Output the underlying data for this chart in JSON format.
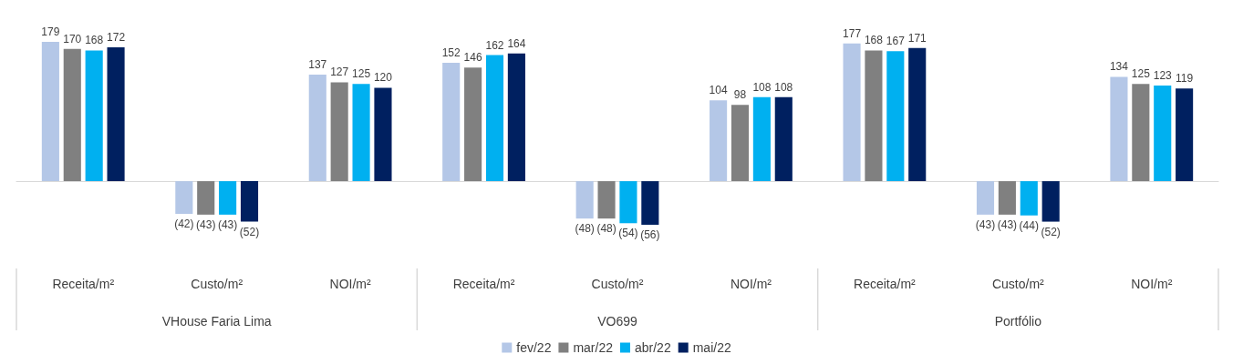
{
  "chart_data": {
    "type": "bar",
    "categories": [
      "Receita/m²",
      "Custo/m²",
      "NOI/m²",
      "Receita/m²",
      "Custo/m²",
      "NOI/m²",
      "Receita/m²",
      "Custo/m²",
      "NOI/m²"
    ],
    "annotations": [
      "VHouse Faria Lima",
      "VO699",
      "Portfólio"
    ],
    "series": [
      {
        "name": "fev/22",
        "color": "#b4c7e7",
        "values": [
          179,
          -42,
          137,
          152,
          -48,
          104,
          177,
          -43,
          134
        ],
        "value_labels": [
          "179",
          "(42)",
          "137",
          "152",
          "(48)",
          "104",
          "177",
          "(43)",
          "134"
        ]
      },
      {
        "name": "mar/22",
        "color": "#808080",
        "values": [
          170,
          -43,
          127,
          146,
          -48,
          98,
          168,
          -43,
          125
        ],
        "value_labels": [
          "170",
          "(43)",
          "127",
          "146",
          "(48)",
          "98",
          "168",
          "(43)",
          "125"
        ]
      },
      {
        "name": "abr/22",
        "color": "#00b0f0",
        "values": [
          168,
          -43,
          125,
          162,
          -54,
          108,
          167,
          -44,
          123
        ],
        "value_labels": [
          "168",
          "(43)",
          "125",
          "162",
          "(54)",
          "108",
          "167",
          "(44)",
          "123"
        ]
      },
      {
        "name": "mai/22",
        "color": "#002060",
        "values": [
          172,
          -52,
          120,
          164,
          -56,
          108,
          171,
          -52,
          119
        ],
        "value_labels": [
          "172",
          "(52)",
          "120",
          "164",
          "(56)",
          "108",
          "171",
          "(52)",
          "119"
        ]
      }
    ],
    "legend": "bottom"
  }
}
